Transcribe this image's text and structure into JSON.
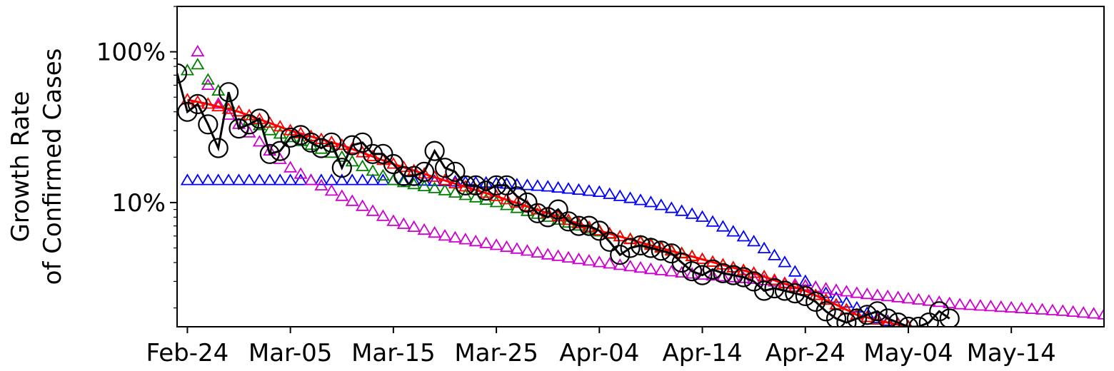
{
  "chart_data": {
    "type": "line",
    "title": "",
    "xlabel": "",
    "ylabel_lines": [
      "Growth Rate",
      "of Confirmed Cases"
    ],
    "y_scale": "log",
    "ylim": [
      0.015,
      2.0
    ],
    "y_ticks": [
      {
        "value": 1.0,
        "label": "100%"
      },
      {
        "value": 0.1,
        "label": "10%"
      }
    ],
    "x_range_days": [
      -1,
      89
    ],
    "x_ticks": [
      {
        "day": 0,
        "label": "Feb-24"
      },
      {
        "day": 10,
        "label": "Mar-05"
      },
      {
        "day": 20,
        "label": "Mar-15"
      },
      {
        "day": 30,
        "label": "Mar-25"
      },
      {
        "day": 40,
        "label": "Apr-04"
      },
      {
        "day": 50,
        "label": "Apr-14"
      },
      {
        "day": 60,
        "label": "Apr-24"
      },
      {
        "day": 70,
        "label": "May-04"
      },
      {
        "day": 80,
        "label": "May-14"
      }
    ],
    "grid": false,
    "legend": "none",
    "series": [
      {
        "color": "#0000ff",
        "marker": "triangle",
        "line": false,
        "x": [
          0,
          10,
          20,
          25,
          30,
          35,
          40,
          45,
          50,
          55,
          58,
          60,
          62,
          65,
          67,
          70
        ],
        "y": [
          0.14,
          0.14,
          0.14,
          0.138,
          0.134,
          0.127,
          0.117,
          0.1,
          0.08,
          0.055,
          0.04,
          0.03,
          0.025,
          0.02,
          0.017,
          0.015
        ]
      },
      {
        "color": "#cc00cc",
        "marker": "triangle",
        "line": false,
        "x": [
          1,
          2,
          3,
          4,
          5,
          6,
          8,
          10,
          12,
          15,
          20,
          25,
          30,
          35,
          40,
          45,
          50,
          55,
          60,
          65,
          70,
          75,
          80,
          85,
          89
        ],
        "y": [
          1.0,
          0.6,
          0.45,
          0.38,
          0.33,
          0.29,
          0.22,
          0.17,
          0.14,
          0.11,
          0.075,
          0.06,
          0.052,
          0.045,
          0.04,
          0.036,
          0.033,
          0.031,
          0.028,
          0.025,
          0.023,
          0.021,
          0.02,
          0.019,
          0.018
        ]
      },
      {
        "color": "#008000",
        "marker": "triangle",
        "line": false,
        "x": [
          0,
          1,
          2,
          3,
          4,
          5,
          6,
          8,
          10,
          12,
          15,
          20,
          25,
          30,
          35,
          40,
          45,
          50,
          55,
          60,
          63,
          65,
          68,
          70
        ],
        "y": [
          0.75,
          0.82,
          0.65,
          0.55,
          0.45,
          0.4,
          0.35,
          0.3,
          0.27,
          0.24,
          0.2,
          0.14,
          0.12,
          0.1,
          0.08,
          0.064,
          0.053,
          0.042,
          0.034,
          0.026,
          0.021,
          0.018,
          0.016,
          0.015
        ]
      },
      {
        "color": "#ff0000",
        "marker": "triangle",
        "line": true,
        "x": [
          0,
          2,
          5,
          10,
          15,
          20,
          25,
          30,
          35,
          40,
          45,
          50,
          55,
          60,
          63,
          65,
          68,
          70
        ],
        "y": [
          0.48,
          0.45,
          0.4,
          0.3,
          0.24,
          0.18,
          0.14,
          0.11,
          0.085,
          0.065,
          0.052,
          0.042,
          0.034,
          0.026,
          0.021,
          0.018,
          0.016,
          0.015
        ]
      },
      {
        "color": "#000000",
        "marker": "circle",
        "line": true,
        "x": [
          -1,
          0,
          1,
          2,
          3,
          4,
          5,
          6,
          7,
          8,
          9,
          10,
          11,
          12,
          13,
          14,
          15,
          16,
          17,
          18,
          19,
          20,
          21,
          22,
          23,
          24,
          25,
          26,
          27,
          28,
          29,
          30,
          31,
          32,
          33,
          34,
          35,
          36,
          37,
          38,
          39,
          40,
          41,
          42,
          43,
          44,
          45,
          46,
          47,
          48,
          49,
          50,
          51,
          52,
          53,
          54,
          55,
          56,
          57,
          58,
          59,
          60,
          61,
          62,
          63,
          64,
          65,
          66,
          67,
          68,
          69,
          70,
          71,
          72,
          73,
          74
        ],
        "y": [
          0.72,
          0.4,
          0.45,
          0.33,
          0.23,
          0.54,
          0.31,
          0.33,
          0.36,
          0.21,
          0.22,
          0.27,
          0.28,
          0.25,
          0.23,
          0.25,
          0.17,
          0.24,
          0.25,
          0.21,
          0.21,
          0.18,
          0.15,
          0.15,
          0.16,
          0.22,
          0.17,
          0.16,
          0.13,
          0.13,
          0.12,
          0.13,
          0.13,
          0.11,
          0.1,
          0.085,
          0.08,
          0.09,
          0.075,
          0.07,
          0.07,
          0.065,
          0.055,
          0.045,
          0.05,
          0.052,
          0.05,
          0.048,
          0.046,
          0.04,
          0.035,
          0.033,
          0.036,
          0.034,
          0.033,
          0.032,
          0.03,
          0.026,
          0.027,
          0.026,
          0.025,
          0.024,
          0.022,
          0.019,
          0.017,
          0.016,
          0.017,
          0.018,
          0.019,
          0.017,
          0.016,
          0.015,
          0.015,
          0.016,
          0.019,
          0.017
        ]
      }
    ]
  }
}
